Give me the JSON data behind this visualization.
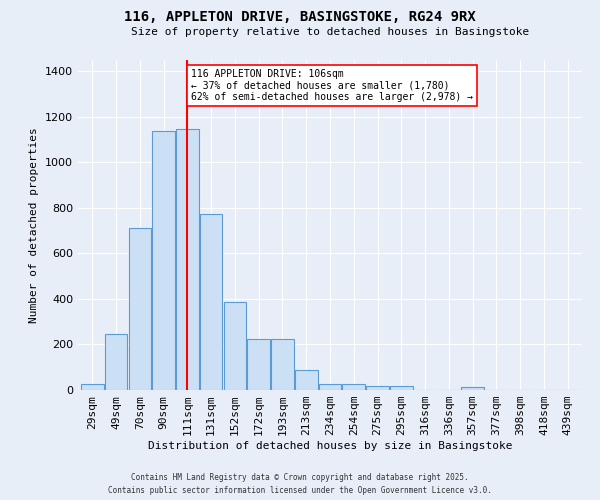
{
  "title_line1": "116, APPLETON DRIVE, BASINGSTOKE, RG24 9RX",
  "title_line2": "Size of property relative to detached houses in Basingstoke",
  "xlabel": "Distribution of detached houses by size in Basingstoke",
  "ylabel": "Number of detached properties",
  "bar_labels": [
    "29sqm",
    "49sqm",
    "70sqm",
    "90sqm",
    "111sqm",
    "131sqm",
    "152sqm",
    "172sqm",
    "193sqm",
    "213sqm",
    "234sqm",
    "254sqm",
    "275sqm",
    "295sqm",
    "316sqm",
    "336sqm",
    "357sqm",
    "377sqm",
    "398sqm",
    "418sqm",
    "439sqm"
  ],
  "bar_heights": [
    25,
    245,
    710,
    1140,
    1145,
    775,
    385,
    225,
    225,
    90,
    27,
    27,
    18,
    18,
    0,
    0,
    13,
    0,
    0,
    0,
    0
  ],
  "bar_color": "#cce0f5",
  "bar_edge_color": "#5b9bd5",
  "vline_x": 4.0,
  "vline_color": "red",
  "annotation_text": "116 APPLETON DRIVE: 106sqm\n← 37% of detached houses are smaller (1,780)\n62% of semi-detached houses are larger (2,978) →",
  "annotation_box_color": "white",
  "annotation_box_edge_color": "red",
  "ylim": [
    0,
    1450
  ],
  "background_color": "#e8eef7",
  "grid_color": "white",
  "footer_line1": "Contains HM Land Registry data © Crown copyright and database right 2025.",
  "footer_line2": "Contains public sector information licensed under the Open Government Licence v3.0."
}
